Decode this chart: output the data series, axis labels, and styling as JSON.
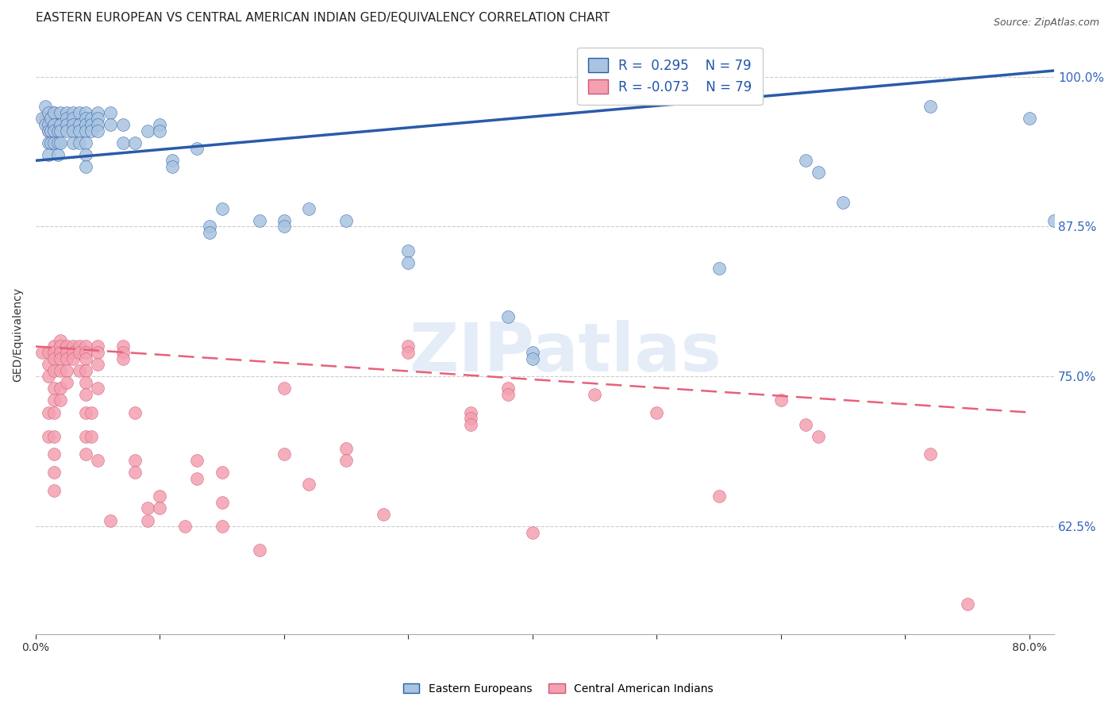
{
  "title": "EASTERN EUROPEAN VS CENTRAL AMERICAN INDIAN GED/EQUIVALENCY CORRELATION CHART",
  "source": "Source: ZipAtlas.com",
  "ylabel": "GED/Equivalency",
  "watermark": "ZIPatlas",
  "x_min": 0.0,
  "x_max": 0.82,
  "y_min": 0.535,
  "y_max": 1.035,
  "y_ticks": [
    0.625,
    0.75,
    0.875,
    1.0
  ],
  "y_tick_labels": [
    "62.5%",
    "75.0%",
    "87.5%",
    "100.0%"
  ],
  "blue_R": 0.295,
  "pink_R": -0.073,
  "N": 79,
  "blue_color": "#A8C4E0",
  "pink_color": "#F4A0B0",
  "blue_line_color": "#2A5BA8",
  "pink_line_color": "#E8607A",
  "title_fontsize": 11,
  "source_fontsize": 9,
  "axis_fontsize": 9,
  "legend_fontsize": 12,
  "blue_scatter": [
    [
      0.005,
      0.965
    ],
    [
      0.008,
      0.96
    ],
    [
      0.008,
      0.975
    ],
    [
      0.01,
      0.97
    ],
    [
      0.01,
      0.96
    ],
    [
      0.01,
      0.955
    ],
    [
      0.01,
      0.945
    ],
    [
      0.01,
      0.935
    ],
    [
      0.012,
      0.965
    ],
    [
      0.012,
      0.955
    ],
    [
      0.012,
      0.945
    ],
    [
      0.015,
      0.97
    ],
    [
      0.015,
      0.96
    ],
    [
      0.015,
      0.955
    ],
    [
      0.015,
      0.945
    ],
    [
      0.018,
      0.955
    ],
    [
      0.018,
      0.945
    ],
    [
      0.018,
      0.935
    ],
    [
      0.02,
      0.97
    ],
    [
      0.02,
      0.96
    ],
    [
      0.02,
      0.955
    ],
    [
      0.02,
      0.945
    ],
    [
      0.025,
      0.97
    ],
    [
      0.025,
      0.965
    ],
    [
      0.025,
      0.96
    ],
    [
      0.025,
      0.955
    ],
    [
      0.03,
      0.97
    ],
    [
      0.03,
      0.965
    ],
    [
      0.03,
      0.96
    ],
    [
      0.03,
      0.955
    ],
    [
      0.03,
      0.945
    ],
    [
      0.035,
      0.97
    ],
    [
      0.035,
      0.96
    ],
    [
      0.035,
      0.955
    ],
    [
      0.035,
      0.945
    ],
    [
      0.04,
      0.97
    ],
    [
      0.04,
      0.965
    ],
    [
      0.04,
      0.96
    ],
    [
      0.04,
      0.955
    ],
    [
      0.04,
      0.945
    ],
    [
      0.04,
      0.935
    ],
    [
      0.04,
      0.925
    ],
    [
      0.045,
      0.965
    ],
    [
      0.045,
      0.96
    ],
    [
      0.045,
      0.955
    ],
    [
      0.05,
      0.97
    ],
    [
      0.05,
      0.965
    ],
    [
      0.05,
      0.96
    ],
    [
      0.05,
      0.955
    ],
    [
      0.06,
      0.97
    ],
    [
      0.06,
      0.96
    ],
    [
      0.07,
      0.96
    ],
    [
      0.07,
      0.945
    ],
    [
      0.08,
      0.945
    ],
    [
      0.09,
      0.955
    ],
    [
      0.1,
      0.96
    ],
    [
      0.1,
      0.955
    ],
    [
      0.11,
      0.93
    ],
    [
      0.11,
      0.925
    ],
    [
      0.13,
      0.94
    ],
    [
      0.14,
      0.875
    ],
    [
      0.14,
      0.87
    ],
    [
      0.15,
      0.89
    ],
    [
      0.18,
      0.88
    ],
    [
      0.2,
      0.88
    ],
    [
      0.2,
      0.875
    ],
    [
      0.22,
      0.89
    ],
    [
      0.25,
      0.88
    ],
    [
      0.3,
      0.855
    ],
    [
      0.3,
      0.845
    ],
    [
      0.38,
      0.8
    ],
    [
      0.4,
      0.77
    ],
    [
      0.4,
      0.765
    ],
    [
      0.55,
      0.84
    ],
    [
      0.62,
      0.93
    ],
    [
      0.63,
      0.92
    ],
    [
      0.65,
      0.895
    ],
    [
      0.72,
      0.975
    ],
    [
      0.8,
      0.965
    ],
    [
      0.82,
      0.88
    ]
  ],
  "pink_scatter": [
    [
      0.005,
      0.77
    ],
    [
      0.008,
      0.965
    ],
    [
      0.01,
      0.96
    ],
    [
      0.01,
      0.955
    ],
    [
      0.012,
      0.96
    ],
    [
      0.012,
      0.955
    ],
    [
      0.015,
      0.97
    ],
    [
      0.015,
      0.965
    ],
    [
      0.015,
      0.96
    ],
    [
      0.01,
      0.77
    ],
    [
      0.01,
      0.76
    ],
    [
      0.01,
      0.75
    ],
    [
      0.01,
      0.72
    ],
    [
      0.01,
      0.7
    ],
    [
      0.015,
      0.775
    ],
    [
      0.015,
      0.77
    ],
    [
      0.015,
      0.765
    ],
    [
      0.015,
      0.755
    ],
    [
      0.015,
      0.74
    ],
    [
      0.015,
      0.73
    ],
    [
      0.015,
      0.72
    ],
    [
      0.015,
      0.7
    ],
    [
      0.015,
      0.685
    ],
    [
      0.015,
      0.67
    ],
    [
      0.015,
      0.655
    ],
    [
      0.02,
      0.78
    ],
    [
      0.02,
      0.775
    ],
    [
      0.02,
      0.77
    ],
    [
      0.02,
      0.765
    ],
    [
      0.02,
      0.755
    ],
    [
      0.02,
      0.74
    ],
    [
      0.02,
      0.73
    ],
    [
      0.025,
      0.775
    ],
    [
      0.025,
      0.77
    ],
    [
      0.025,
      0.765
    ],
    [
      0.025,
      0.755
    ],
    [
      0.025,
      0.745
    ],
    [
      0.03,
      0.775
    ],
    [
      0.03,
      0.77
    ],
    [
      0.03,
      0.765
    ],
    [
      0.035,
      0.775
    ],
    [
      0.035,
      0.77
    ],
    [
      0.035,
      0.755
    ],
    [
      0.04,
      0.775
    ],
    [
      0.04,
      0.77
    ],
    [
      0.04,
      0.765
    ],
    [
      0.04,
      0.755
    ],
    [
      0.04,
      0.745
    ],
    [
      0.04,
      0.735
    ],
    [
      0.04,
      0.72
    ],
    [
      0.04,
      0.7
    ],
    [
      0.04,
      0.685
    ],
    [
      0.045,
      0.72
    ],
    [
      0.045,
      0.7
    ],
    [
      0.05,
      0.775
    ],
    [
      0.05,
      0.77
    ],
    [
      0.05,
      0.76
    ],
    [
      0.05,
      0.74
    ],
    [
      0.05,
      0.68
    ],
    [
      0.06,
      0.63
    ],
    [
      0.07,
      0.775
    ],
    [
      0.07,
      0.77
    ],
    [
      0.07,
      0.765
    ],
    [
      0.08,
      0.72
    ],
    [
      0.08,
      0.68
    ],
    [
      0.08,
      0.67
    ],
    [
      0.09,
      0.64
    ],
    [
      0.09,
      0.63
    ],
    [
      0.1,
      0.65
    ],
    [
      0.1,
      0.64
    ],
    [
      0.12,
      0.625
    ],
    [
      0.13,
      0.68
    ],
    [
      0.13,
      0.665
    ],
    [
      0.15,
      0.67
    ],
    [
      0.15,
      0.645
    ],
    [
      0.15,
      0.625
    ],
    [
      0.18,
      0.605
    ],
    [
      0.2,
      0.74
    ],
    [
      0.2,
      0.685
    ],
    [
      0.22,
      0.66
    ],
    [
      0.25,
      0.69
    ],
    [
      0.25,
      0.68
    ],
    [
      0.28,
      0.635
    ],
    [
      0.3,
      0.775
    ],
    [
      0.3,
      0.77
    ],
    [
      0.35,
      0.72
    ],
    [
      0.35,
      0.715
    ],
    [
      0.35,
      0.71
    ],
    [
      0.38,
      0.74
    ],
    [
      0.38,
      0.735
    ],
    [
      0.4,
      0.62
    ],
    [
      0.45,
      0.735
    ],
    [
      0.5,
      0.72
    ],
    [
      0.55,
      0.65
    ],
    [
      0.6,
      0.73
    ],
    [
      0.62,
      0.71
    ],
    [
      0.63,
      0.7
    ],
    [
      0.72,
      0.685
    ],
    [
      0.75,
      0.56
    ]
  ]
}
